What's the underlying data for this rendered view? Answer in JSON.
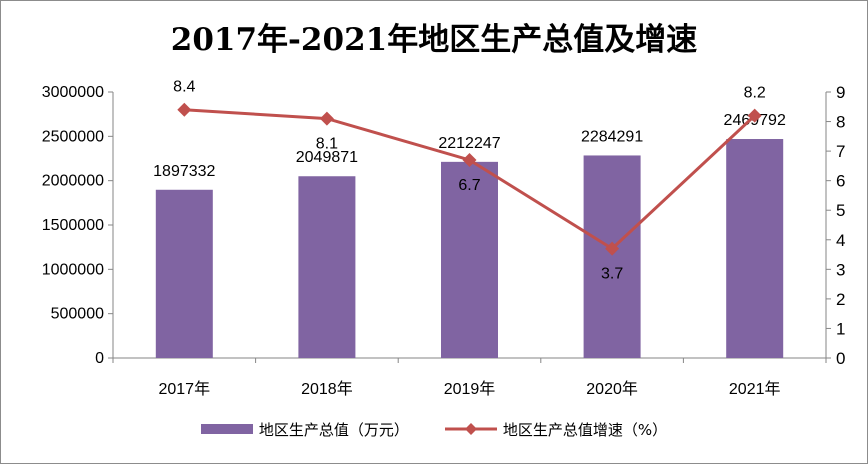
{
  "colors": {
    "bar": "#8064A2",
    "line": "#C0504D",
    "axis": "#868686"
  },
  "chart_data": {
    "type": "bar",
    "title": "2017年-2021年地区生产总值及增速",
    "categories": [
      "2017年",
      "2018年",
      "2019年",
      "2020年",
      "2021年"
    ],
    "series": [
      {
        "name": "地区生产总值（万元）",
        "type": "bar",
        "axis": "left",
        "values": [
          1897332,
          2049871,
          2212247,
          2284291,
          2469792
        ],
        "labels": [
          "1897332",
          "2049871",
          "2212247",
          "2284291",
          "2469792"
        ]
      },
      {
        "name": "地区生产总值增速（%）",
        "type": "line",
        "axis": "right",
        "marker": "diamond",
        "values": [
          8.4,
          8.1,
          6.7,
          3.7,
          8.2
        ],
        "labels": [
          "8.4",
          "8.1",
          "6.7",
          "3.7",
          "8.2"
        ]
      }
    ],
    "y_left": {
      "min": 0,
      "max": 3000000,
      "step": 500000,
      "ticks": [
        "0",
        "500000",
        "1000000",
        "1500000",
        "2000000",
        "2500000",
        "3000000"
      ]
    },
    "y_right": {
      "min": 0,
      "max": 9,
      "step": 1,
      "ticks": [
        "0",
        "1",
        "2",
        "3",
        "4",
        "5",
        "6",
        "7",
        "8",
        "9"
      ]
    },
    "grid": false,
    "legend": "bottom"
  }
}
